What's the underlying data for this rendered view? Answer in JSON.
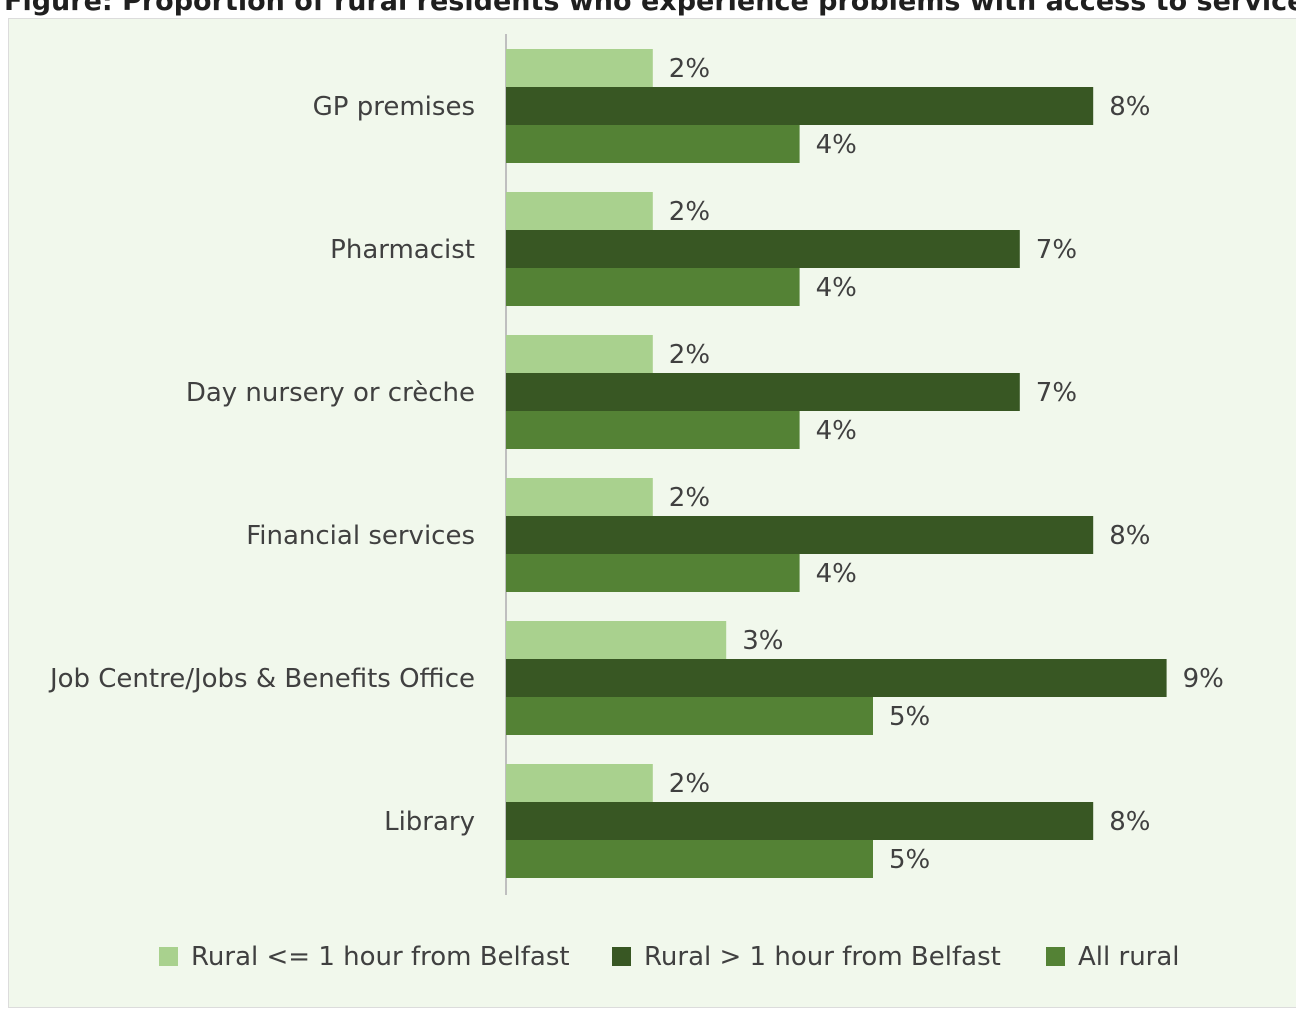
{
  "title": "Figure: Proportion of rural residents who experience problems with access to services",
  "chart_data": {
    "type": "bar",
    "orientation": "horizontal",
    "categories": [
      "GP premises",
      "Pharmacist",
      "Day nursery or crèche",
      "Financial services",
      "Job Centre/Jobs & Benefits Office",
      "Library"
    ],
    "series": [
      {
        "name": "Rural <= 1 hour from Belfast",
        "color": "#a9d18e",
        "values": [
          2,
          2,
          2,
          2,
          3,
          2
        ],
        "labels": [
          "2%",
          "2%",
          "2%",
          "2%",
          "3%",
          "2%"
        ]
      },
      {
        "name": "Rural > 1 hour from Belfast",
        "color": "#385723",
        "values": [
          8,
          7,
          7,
          8,
          9,
          8
        ],
        "labels": [
          "8%",
          "7%",
          "7%",
          "8%",
          "9%",
          "8%"
        ]
      },
      {
        "name": "All rural",
        "color": "#548235",
        "values": [
          4,
          4,
          4,
          4,
          5,
          5
        ],
        "labels": [
          "4%",
          "4%",
          "4%",
          "4%",
          "5%",
          "5%"
        ]
      }
    ],
    "xlim": [
      0,
      10
    ],
    "unit": "%",
    "grid": false,
    "legend": "bottom"
  }
}
